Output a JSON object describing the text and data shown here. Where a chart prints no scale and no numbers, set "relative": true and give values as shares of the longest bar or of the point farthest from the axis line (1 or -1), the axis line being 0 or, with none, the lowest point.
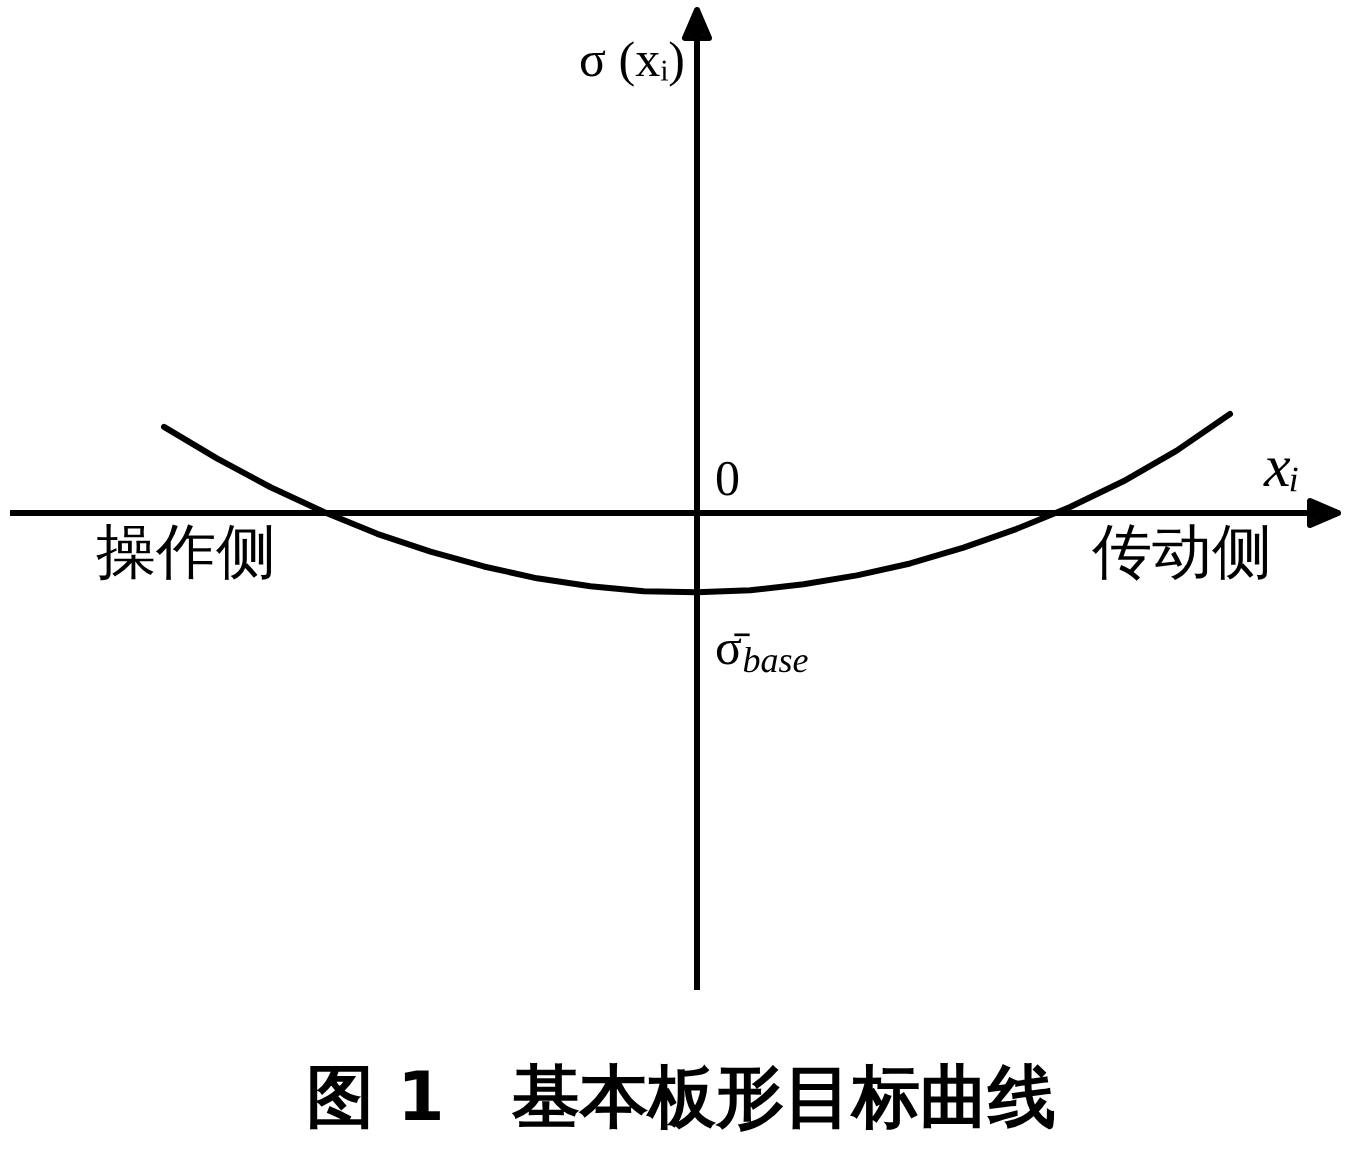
{
  "chart_data": {
    "type": "line",
    "title": "图 1　基本板形目标曲线",
    "xlabel": "xᵢ",
    "relative": true,
    "marker": "none",
    "line_style": "solid",
    "categories": [
      null,
      null,
      null,
      null,
      null,
      null,
      null,
      null,
      null,
      null,
      null,
      null,
      null,
      null,
      null,
      null,
      null,
      null,
      null,
      null,
      null
    ],
    "series": [
      {
        "color": "#000000",
        "values": [
          0.87,
          0.55,
          0.26,
          0.01,
          -0.21,
          -0.39,
          -0.54,
          -0.66,
          -0.74,
          -0.79,
          -0.8,
          -0.78,
          -0.72,
          -0.63,
          -0.51,
          -0.35,
          -0.16,
          0.06,
          0.32,
          0.63,
          1.0
        ]
      }
    ],
    "annotations": [
      "σ (xᵢ)",
      "0",
      {
        "text": "σ̄$_{base}$",
        "y": -0.8
      },
      "操作侧",
      "传动侧"
    ]
  }
}
